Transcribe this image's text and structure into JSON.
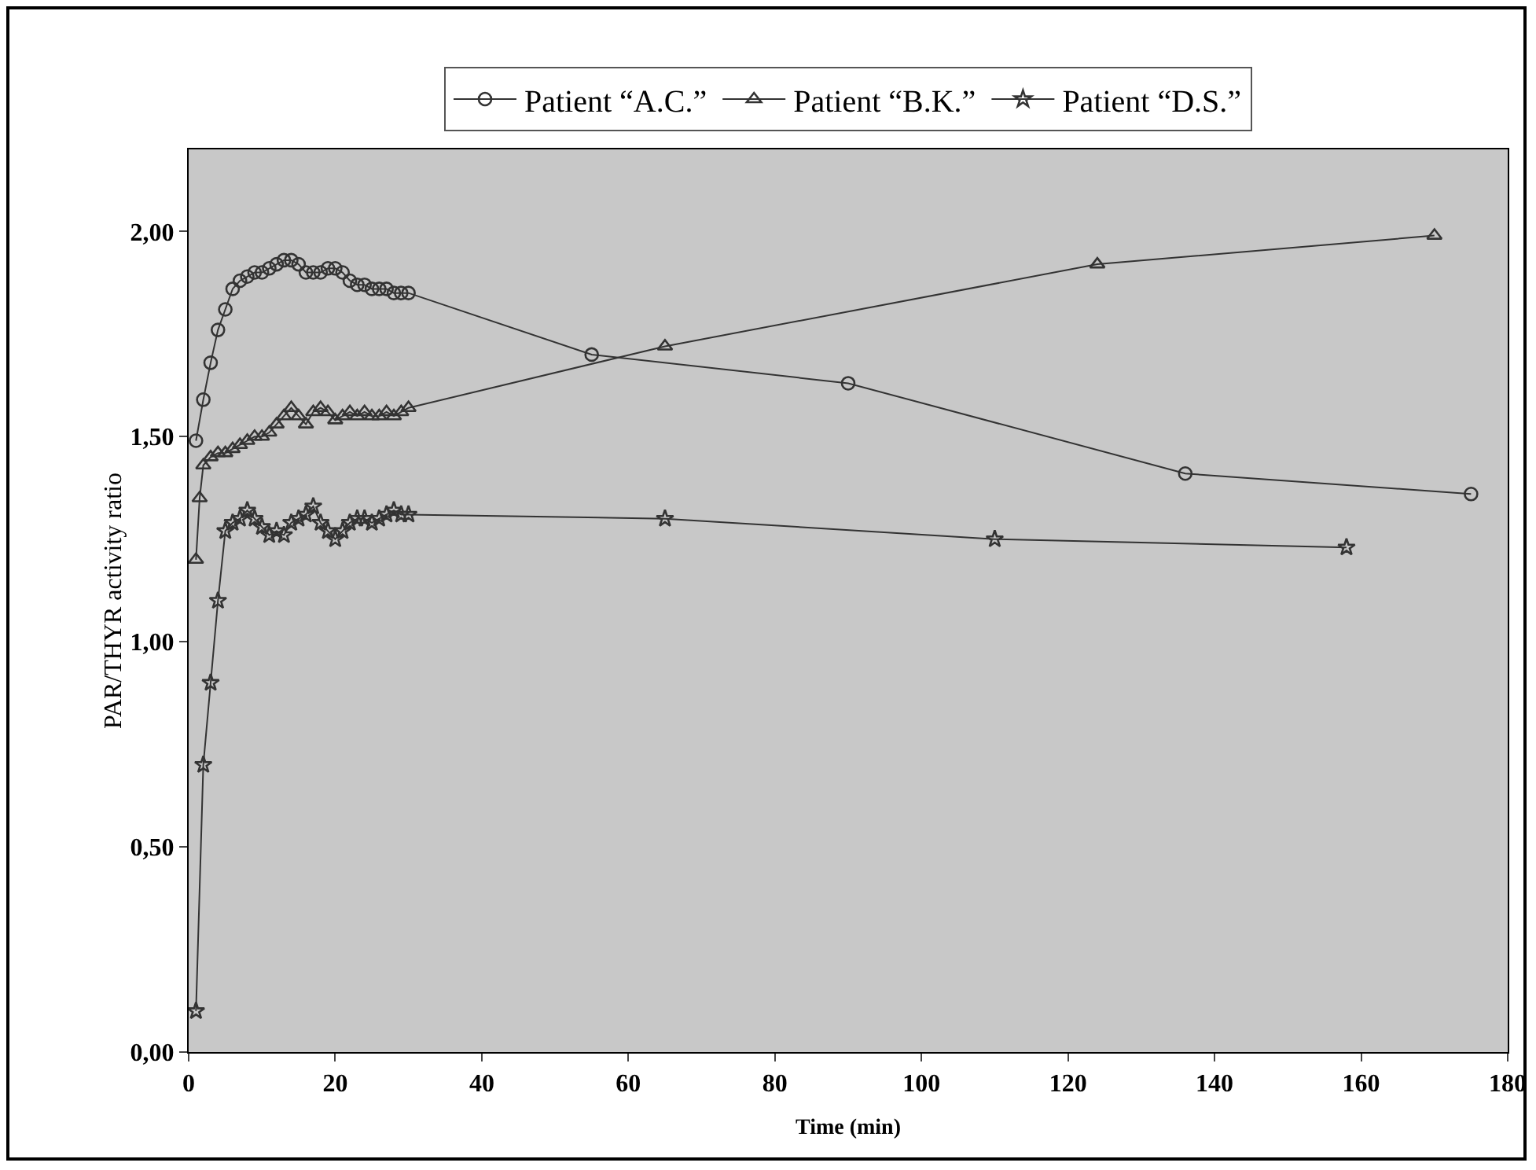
{
  "chart_data": {
    "type": "line",
    "xlabel": "Time (min)",
    "ylabel": "PAR/THYR activity ratio",
    "xlim": [
      0,
      180
    ],
    "xticks": [
      0,
      20,
      40,
      60,
      80,
      100,
      120,
      140,
      160,
      180
    ],
    "ylim": [
      0,
      2.2
    ],
    "yticks": [
      {
        "value": 0,
        "label": "0,00"
      },
      {
        "value": 0.5,
        "label": "0,50"
      },
      {
        "value": 1,
        "label": "1,00"
      },
      {
        "value": 1.5,
        "label": "1,50"
      },
      {
        "value": 2,
        "label": "2,00"
      }
    ],
    "grid": false,
    "legend": "top",
    "line_style": "solid",
    "series": [
      {
        "name": "Patient “A.C.”",
        "color": "#333333",
        "marker": "circle",
        "x": [
          1,
          2,
          3,
          4,
          5,
          6,
          7,
          8,
          9,
          10,
          11,
          12,
          13,
          14,
          15,
          16,
          17,
          18,
          19,
          20,
          21,
          22,
          23,
          24,
          25,
          26,
          27,
          28,
          29,
          30,
          55,
          90,
          136,
          175
        ],
        "values": [
          1.49,
          1.59,
          1.68,
          1.76,
          1.81,
          1.86,
          1.88,
          1.89,
          1.9,
          1.9,
          1.91,
          1.92,
          1.93,
          1.93,
          1.92,
          1.9,
          1.9,
          1.9,
          1.91,
          1.91,
          1.9,
          1.88,
          1.87,
          1.87,
          1.86,
          1.86,
          1.86,
          1.85,
          1.85,
          1.85,
          1.7,
          1.63,
          1.41,
          1.36
        ]
      },
      {
        "name": "Patient “B.K.”",
        "color": "#333333",
        "marker": "triangle",
        "x": [
          1,
          1.5,
          2,
          3,
          4,
          5,
          6,
          7,
          8,
          9,
          10,
          11,
          12,
          13,
          14,
          15,
          16,
          17,
          18,
          19,
          20,
          21,
          22,
          23,
          24,
          25,
          26,
          27,
          28,
          29,
          30,
          65,
          124,
          170
        ],
        "values": [
          1.2,
          1.35,
          1.43,
          1.45,
          1.46,
          1.46,
          1.47,
          1.48,
          1.49,
          1.5,
          1.5,
          1.51,
          1.53,
          1.55,
          1.57,
          1.55,
          1.53,
          1.56,
          1.57,
          1.56,
          1.54,
          1.55,
          1.56,
          1.55,
          1.56,
          1.55,
          1.55,
          1.56,
          1.55,
          1.56,
          1.57,
          1.72,
          1.92,
          1.99
        ]
      },
      {
        "name": "Patient “D.S.”",
        "color": "#333333",
        "marker": "star",
        "x": [
          1,
          2,
          3,
          4,
          5,
          6,
          7,
          8,
          9,
          10,
          11,
          12,
          13,
          14,
          15,
          16,
          17,
          18,
          19,
          20,
          21,
          22,
          23,
          24,
          25,
          26,
          27,
          28,
          29,
          30,
          65,
          110,
          158
        ],
        "values": [
          0.1,
          0.7,
          0.9,
          1.1,
          1.27,
          1.29,
          1.3,
          1.32,
          1.3,
          1.28,
          1.26,
          1.27,
          1.26,
          1.29,
          1.3,
          1.31,
          1.33,
          1.29,
          1.27,
          1.25,
          1.27,
          1.29,
          1.3,
          1.3,
          1.29,
          1.3,
          1.31,
          1.32,
          1.31,
          1.31,
          1.3,
          1.25,
          1.23
        ]
      }
    ]
  }
}
